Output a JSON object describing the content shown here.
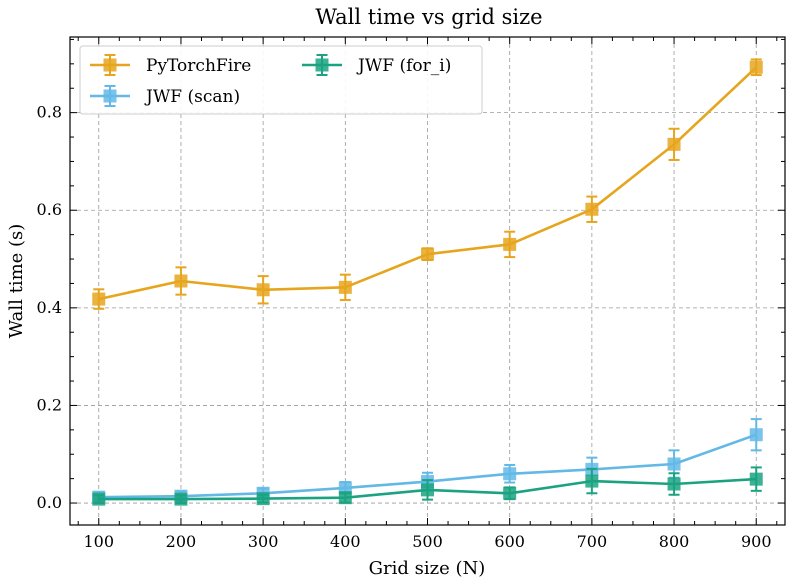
{
  "chart_data": {
    "type": "line",
    "title": "Wall time vs grid size",
    "xlabel": "Grid size (N)",
    "ylabel": "Wall time (s)",
    "x": [
      100,
      200,
      300,
      400,
      500,
      600,
      700,
      800,
      900
    ],
    "xlim": [
      65,
      935
    ],
    "ylim": [
      -0.045,
      0.955
    ],
    "xticks": [
      100,
      200,
      300,
      400,
      500,
      600,
      700,
      800,
      900
    ],
    "yticks": [
      0.0,
      0.2,
      0.4,
      0.6,
      0.8
    ],
    "ytick_labels": [
      "0.0",
      "0.2",
      "0.4",
      "0.6",
      "0.8"
    ],
    "grid": true,
    "legend_position": "top-left",
    "series": [
      {
        "name": "PyTorchFire",
        "color": "#E6A51D",
        "values": [
          0.418,
          0.455,
          0.437,
          0.442,
          0.51,
          0.53,
          0.602,
          0.735,
          0.893
        ],
        "errors": [
          0.02,
          0.028,
          0.028,
          0.026,
          0.012,
          0.026,
          0.026,
          0.032,
          0.016
        ]
      },
      {
        "name": "JWF (scan)",
        "color": "#63B8E6",
        "values": [
          0.012,
          0.014,
          0.02,
          0.031,
          0.044,
          0.06,
          0.069,
          0.08,
          0.14
        ],
        "errors": [
          0.01,
          0.01,
          0.01,
          0.012,
          0.018,
          0.018,
          0.024,
          0.028,
          0.032
        ]
      },
      {
        "name": "JWF (for_i)",
        "color": "#1BA381",
        "values": [
          0.008,
          0.008,
          0.009,
          0.011,
          0.027,
          0.02,
          0.045,
          0.039,
          0.049
        ],
        "errors": [
          0.008,
          0.008,
          0.008,
          0.01,
          0.02,
          0.012,
          0.025,
          0.022,
          0.024
        ]
      }
    ]
  }
}
